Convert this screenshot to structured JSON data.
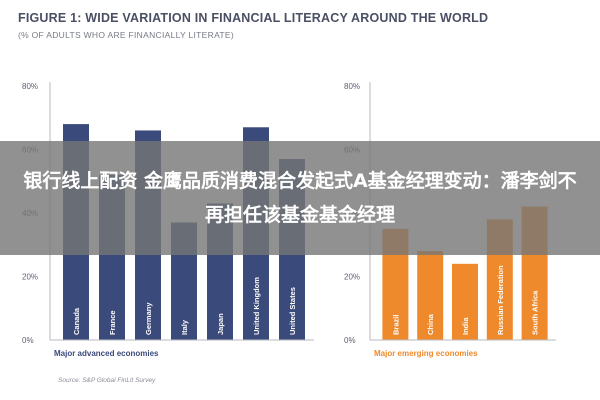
{
  "figure": {
    "title": "FIGURE 1: WIDE VARIATION IN FINANCIAL LITERACY AROUND THE WORLD",
    "subtitle": "(% OF ADULTS WHO ARE FINANCIALLY LITERATE)",
    "source": "Source: S&P Global FinLit Survey"
  },
  "banner": {
    "text": "银行线上配资 金鹰品质消费混合发起式A基金经理变动：潘李剑不再担任该基金基金经理"
  },
  "colors": {
    "advanced": "#3a4a7a",
    "emerging": "#ee8a2c",
    "axis": "#b8bac2"
  },
  "chart_data": [
    {
      "type": "bar",
      "group_label": "Major advanced economies",
      "categories": [
        "Canada",
        "France",
        "Germany",
        "Italy",
        "Japan",
        "United Kingdom",
        "United States"
      ],
      "values": [
        68,
        52,
        66,
        37,
        43,
        67,
        57
      ],
      "yticks": [
        "0%",
        "20%",
        "40%",
        "60%",
        "80%"
      ],
      "ylim": [
        0,
        80
      ]
    },
    {
      "type": "bar",
      "group_label": "Major emerging economies",
      "categories": [
        "Brazil",
        "China",
        "India",
        "Russian Federation",
        "South Africa"
      ],
      "values": [
        35,
        28,
        24,
        38,
        42
      ],
      "yticks": [
        "0%",
        "20%",
        "40%",
        "60%",
        "80%"
      ],
      "ylim": [
        0,
        80
      ]
    }
  ]
}
